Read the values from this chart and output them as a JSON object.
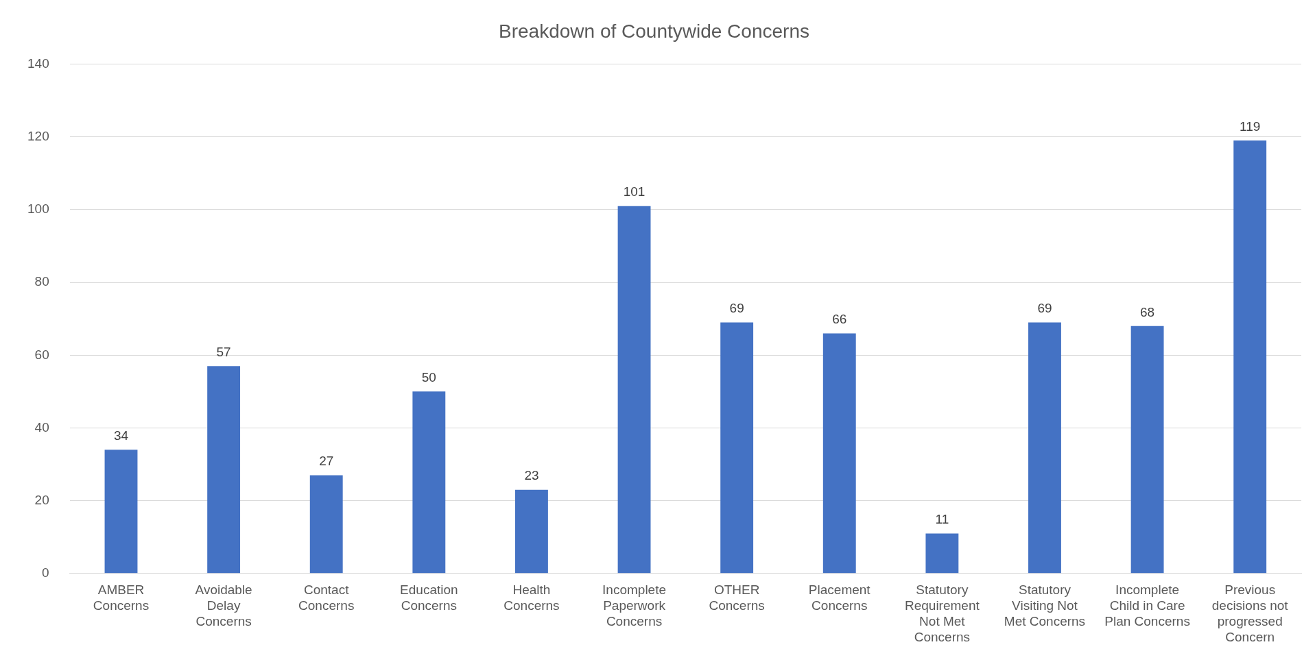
{
  "chart_data": {
    "type": "bar",
    "title": "Breakdown of Countywide Concerns",
    "categories": [
      "AMBER Concerns",
      "Avoidable Delay Concerns",
      "Contact Concerns",
      "Education Concerns",
      "Health Concerns",
      "Incomplete Paperwork Concerns",
      "OTHER Concerns",
      "Placement Concerns",
      "Statutory Requirement Not Met Concerns",
      "Statutory Visiting Not Met Concerns",
      "Incomplete Child in Care Plan Concerns",
      "Previous decisions not progressed Concern"
    ],
    "values": [
      34,
      57,
      27,
      50,
      23,
      101,
      69,
      66,
      11,
      69,
      68,
      119
    ],
    "color": "#4472c4",
    "ylim": [
      0,
      140
    ],
    "yticks": [
      0,
      20,
      40,
      60,
      80,
      100,
      120,
      140
    ],
    "grid": "y",
    "data_labels": true
  }
}
